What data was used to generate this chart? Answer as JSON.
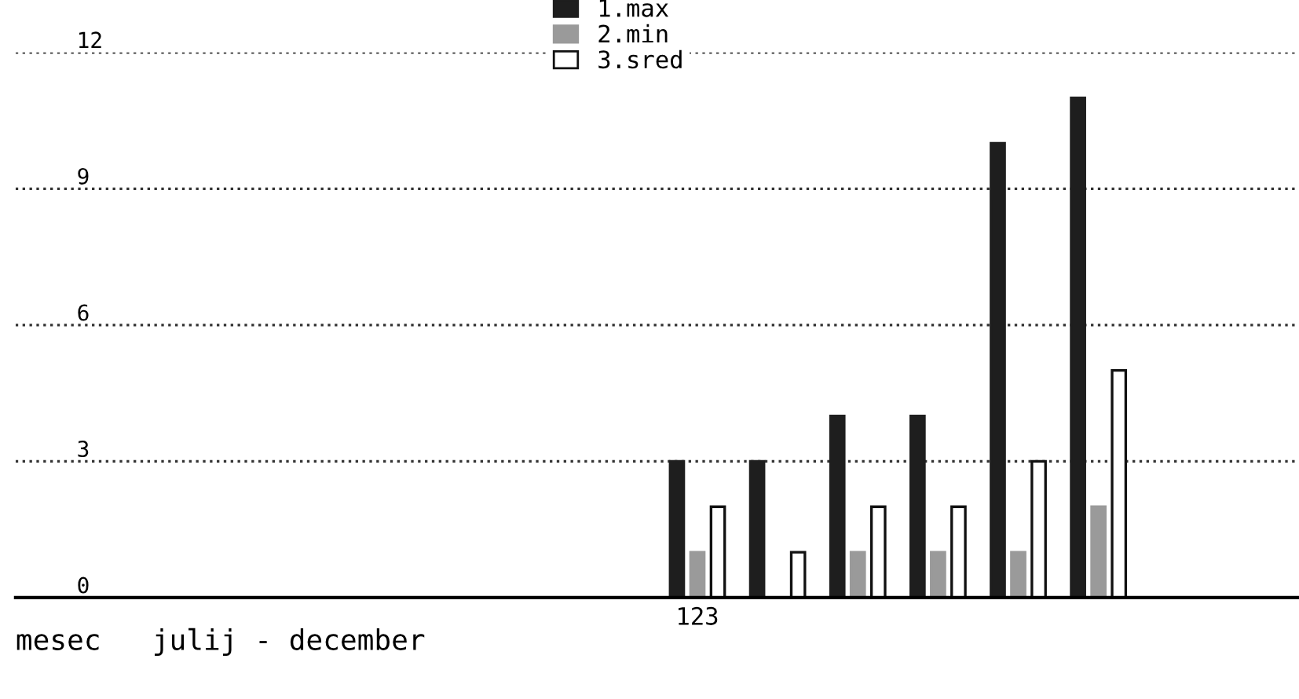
{
  "chart_data": {
    "type": "bar",
    "xlabel": "mesec   julij - december",
    "categories": [
      null,
      null,
      null,
      null,
      null,
      null,
      null,
      null,
      null,
      null,
      null,
      null,
      null,
      null,
      null,
      null
    ],
    "series": [
      {
        "name": "1.max",
        "color": "#1e1e1e",
        "values": [
          null,
          null,
          null,
          null,
          null,
          null,
          null,
          null,
          3,
          3,
          4,
          4,
          10,
          11,
          null,
          null
        ]
      },
      {
        "name": "2.min",
        "color": "#9a9a9a",
        "values": [
          null,
          null,
          null,
          null,
          null,
          null,
          null,
          null,
          1,
          0,
          1,
          1,
          1,
          2,
          null,
          null
        ]
      },
      {
        "name": "3.sred",
        "color": "#ffffff",
        "values": [
          null,
          null,
          null,
          null,
          null,
          null,
          null,
          null,
          2,
          1,
          2,
          2,
          3,
          5,
          null,
          null
        ]
      }
    ],
    "ylim": [
      0,
      12
    ],
    "yticks": [
      0,
      3,
      6,
      9,
      12
    ],
    "grid": "y",
    "legend": "top",
    "tick_labels": "y",
    "line_style": "dotted",
    "annotations": [
      "123"
    ]
  }
}
